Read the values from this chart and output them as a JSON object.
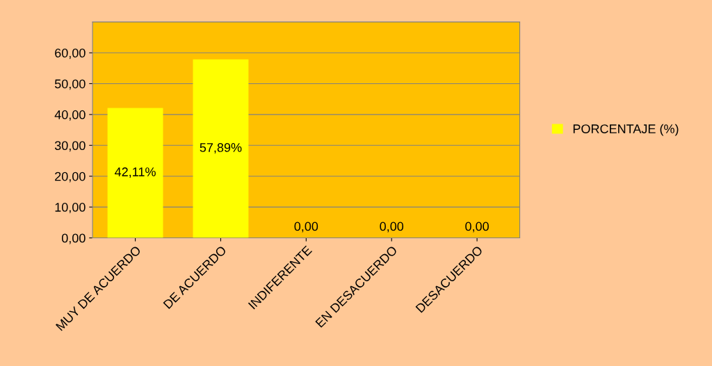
{
  "chart_data": {
    "type": "bar",
    "categories": [
      "MUY DE ACUERDO",
      "DE ACUERDO",
      "INDIFERENTE",
      "EN DESACUERDO",
      "DESACUERDO"
    ],
    "series": [
      {
        "name": "PORCENTAJE (%)",
        "color": "#ffff00",
        "values": [
          42.11,
          57.89,
          0,
          0,
          0
        ],
        "value_labels": [
          "42,11%",
          "57,89%",
          "0,00",
          "0,00",
          "0,00"
        ]
      }
    ],
    "ylim": [
      0,
      70
    ],
    "yticks": [
      {
        "value": 0,
        "label": "0,00"
      },
      {
        "value": 10,
        "label": "10,00"
      },
      {
        "value": 20,
        "label": "20,00"
      },
      {
        "value": 30,
        "label": "30,00"
      },
      {
        "value": 40,
        "label": "40,00"
      },
      {
        "value": 50,
        "label": "50,00"
      },
      {
        "value": 60,
        "label": "60,00"
      }
    ],
    "grid": "y",
    "legend": "right"
  }
}
